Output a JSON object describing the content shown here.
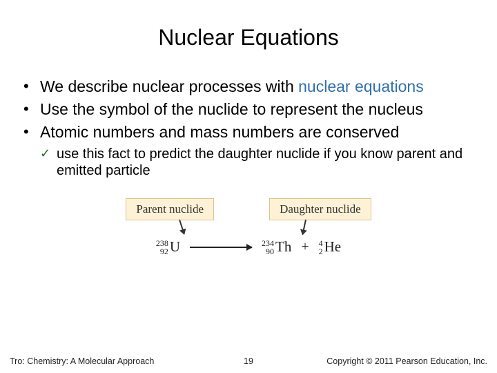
{
  "title": "Nuclear Equations",
  "bullets": {
    "b1_pre": "We describe nuclear processes with ",
    "b1_kw": "nuclear equations",
    "b2": "Use the symbol of the nuclide to represent the nucleus",
    "b3": "Atomic numbers and mass numbers are conserved"
  },
  "sub": {
    "s1": "use this fact to predict the daughter nuclide if you know parent and emitted particle"
  },
  "diagram": {
    "parent_label": "Parent nuclide",
    "daughter_label": "Daughter nuclide",
    "box_bg": "#fdf1d6",
    "box_border": "#d9c68a",
    "eq": {
      "n1": {
        "mass": "238",
        "z": "92",
        "sym": "U"
      },
      "n2": {
        "mass": "234",
        "z": "90",
        "sym": "Th"
      },
      "n3": {
        "mass": "4",
        "z": "2",
        "sym": "He"
      },
      "plus": "+"
    }
  },
  "footer": {
    "left": "Tro: Chemistry: A Molecular Approach",
    "page": "19",
    "right": "Copyright © 2011 Pearson Education, Inc."
  },
  "colors": {
    "keyword": "#2f6fb0",
    "check": "#2a6a2a"
  }
}
